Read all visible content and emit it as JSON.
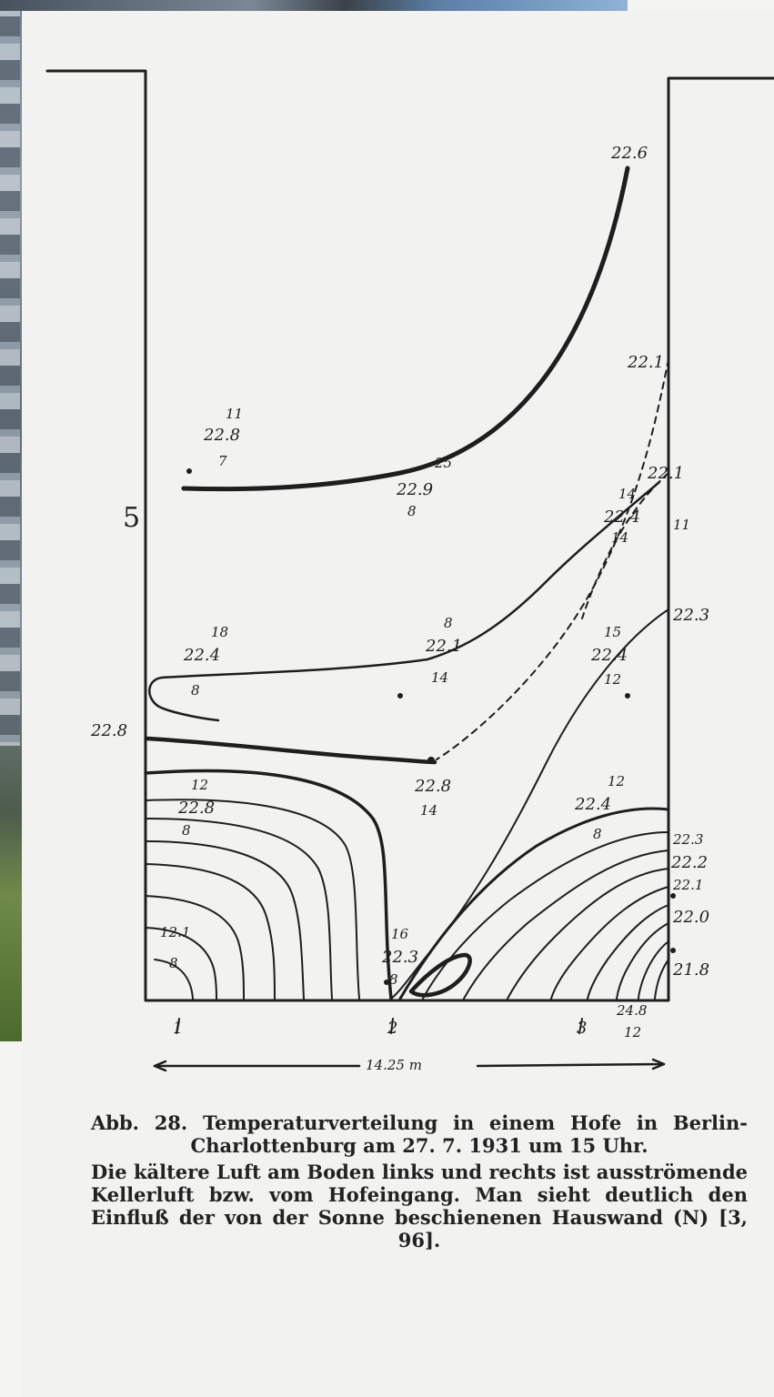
{
  "figure": {
    "labels": {
      "top_right": "22.6",
      "right_upper": "22.1",
      "right_mid_a": "22.1",
      "right_mid_b": "11",
      "right_mid_c": "22.3",
      "left_5": "5",
      "left_228": "22.8",
      "upper_left_a": "11",
      "upper_left_b": "22.8",
      "upper_left_c": "7",
      "upper_mid_a": "25",
      "upper_mid_b": "22.9",
      "upper_mid_c": "8",
      "mid_left_a": "18",
      "mid_left_b": "22.4",
      "mid_left_c": "8",
      "mid_center_a": "8",
      "mid_center_b": "22.1",
      "mid_center_c": "14",
      "mid_right_a": "14",
      "mid_right_b": "22.4",
      "mid_right_c": "14",
      "right_block_a": "15",
      "right_block_b": "22.4",
      "right_block_c": "12",
      "low_left_a": "12",
      "low_left_b": "22.8",
      "low_left_c": "8",
      "low_center_a": "22.8",
      "low_center_b": "14",
      "low_right_a": "12",
      "low_right_b": "22.4",
      "low_right_c": "8",
      "edge_a": "22.3",
      "edge_b": "22.2",
      "edge_c": "22.1",
      "edge_d": "22.0",
      "edge_e": "21.8",
      "bottom_left_a": "12.1",
      "bottom_left_b": "8",
      "bottom_mid_a": "16",
      "bottom_mid_b": "22.3",
      "bottom_mid_c": "8",
      "bottom_right_a": "24.8",
      "bottom_right_b": "12",
      "axis_1": "1",
      "axis_2": "2",
      "axis_3": "3",
      "scale": "14.25 m"
    }
  },
  "caption": {
    "title": "Abb. 28. Temperaturverteilung in einem Hofe in Berlin-Charlottenburg am 27. 7. 1931 um 15 Uhr.",
    "body": "Die kältere Luft am Boden links und rechts ist ausströmende Kellerluft bzw. vom Hofeingang. Man sieht deutlich den Einfluß der von der Sonne beschienenen Hauswand (N) [3, 96]."
  }
}
